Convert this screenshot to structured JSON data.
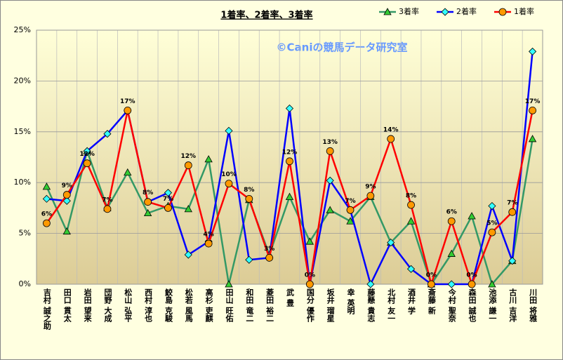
{
  "chart_data": {
    "type": "line",
    "title": "1着率、2着率、3着率",
    "watermark": "©Caniの競馬データ研究室",
    "categories": [
      "吉村 誠之助",
      "田口 貫太",
      "岩田 望来",
      "団野 大成",
      "松山 弘平",
      "西村 淳也",
      "鮫島 克駿",
      "松若 風馬",
      "高杉 吏麒",
      "田山 旺佑",
      "和田 竜二",
      "菱田 裕二",
      "武 豊",
      "国分 優作",
      "坂井 瑠星",
      "幸 英明",
      "藤懸 貴志",
      "北村 友一",
      "酒井 学",
      "斎藤 新",
      "今村 聖奈",
      "森田 誠也",
      "池添 謙一",
      "古川 吉洋",
      "川田 将雅"
    ],
    "series": [
      {
        "name": "3着率",
        "color": "#33cc33",
        "line_color": "#339966",
        "marker": "triangle",
        "values": [
          9.6,
          5.2,
          13.1,
          7.5,
          11.0,
          7.0,
          7.7,
          7.4,
          12.3,
          0,
          8.3,
          2.9,
          8.6,
          4.2,
          7.3,
          6.2,
          8.6,
          4.1,
          6.2,
          0,
          3.0,
          6.7,
          0,
          2.3,
          14.3
        ]
      },
      {
        "name": "2着率",
        "color": "#33ffff",
        "line_color": "#0000ff",
        "marker": "diamond",
        "values": [
          8.4,
          8.2,
          13.1,
          14.8,
          17.1,
          8.1,
          9.0,
          2.9,
          4.2,
          15.1,
          2.4,
          2.6,
          17.3,
          0,
          10.2,
          7.3,
          0,
          4.1,
          1.5,
          0,
          0,
          0,
          7.7,
          2.3,
          22.9
        ]
      },
      {
        "name": "1着率",
        "color": "#ff9900",
        "line_color": "#ff0000",
        "marker": "circle",
        "values": [
          6.0,
          8.8,
          11.9,
          7.4,
          17.1,
          8.1,
          7.5,
          11.7,
          4.0,
          9.9,
          8.4,
          2.6,
          12.1,
          0,
          13.1,
          7.3,
          8.7,
          14.3,
          7.8,
          0,
          6.2,
          0,
          5.1,
          7.1,
          17.1
        ],
        "value_labels": [
          "6%",
          "9%",
          "12%",
          "7%",
          "17%",
          "8%",
          "7%",
          "12%",
          "4%",
          "10%",
          "8%",
          "3%",
          "12%",
          "0%",
          "13%",
          "7%",
          "9%",
          "14%",
          "8%",
          "0%",
          "6%",
          "0%",
          "5%",
          "7%",
          "17%"
        ]
      }
    ],
    "ylim": [
      0,
      25
    ],
    "yticks": [
      {
        "value": 0,
        "label": "0%"
      },
      {
        "value": 5,
        "label": "5%"
      },
      {
        "value": 10,
        "label": "10%"
      },
      {
        "value": 15,
        "label": "15%"
      },
      {
        "value": 20,
        "label": "20%"
      },
      {
        "value": 25,
        "label": "25%"
      }
    ],
    "grid": true,
    "legend": "top-right"
  }
}
